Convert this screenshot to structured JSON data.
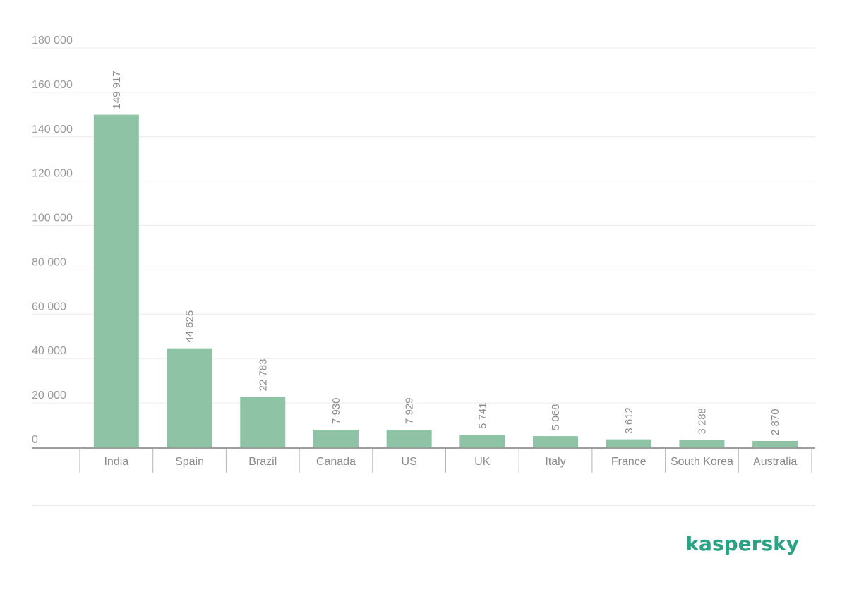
{
  "chart_data": {
    "type": "bar",
    "categories": [
      "India",
      "Spain",
      "Brazil",
      "Canada",
      "US",
      "UK",
      "Italy",
      "France",
      "South Korea",
      "Australia"
    ],
    "values": [
      149917,
      44625,
      22783,
      7930,
      7929,
      5741,
      5068,
      3612,
      3288,
      2870
    ],
    "value_labels": [
      "149 917",
      "44 625",
      "22 783",
      "7 930",
      "7 929",
      "5 741",
      "5 068",
      "3 612",
      "3 288",
      "2 870"
    ],
    "ylim": [
      0,
      180000
    ],
    "yticks": [
      0,
      20000,
      40000,
      60000,
      80000,
      100000,
      120000,
      140000,
      160000,
      180000
    ],
    "ytick_labels": [
      "0",
      "20 000",
      "40 000",
      "60 000",
      "80 000",
      "100 000",
      "120 000",
      "140 000",
      "160 000",
      "180 000"
    ],
    "grid": true,
    "colors": {
      "bar": "#8fc3a6",
      "grid": "#ececec",
      "axis": "#9e9e9e"
    }
  },
  "brand": {
    "logo_text": "kaspersky",
    "logo_color": "#2aa284"
  }
}
